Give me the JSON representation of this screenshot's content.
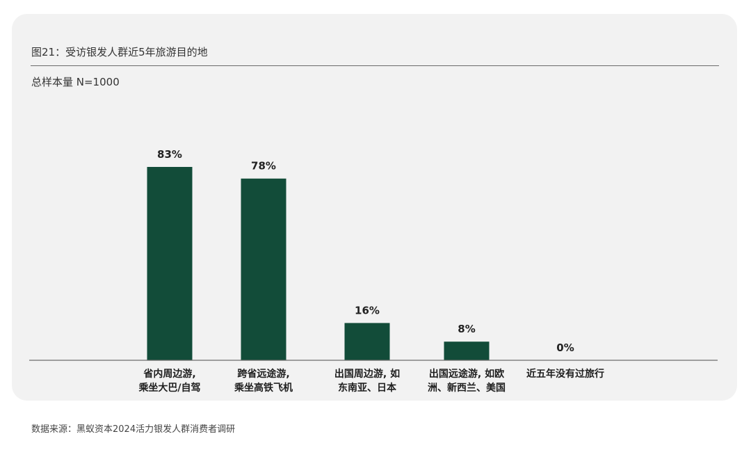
{
  "title": "图21：受访银发人群近5年旅游目的地",
  "subtitle": "总样本量 N=1000",
  "source": "数据来源：黑蚁资本2024活力银发人群消费者调研",
  "colors": {
    "bar": "#124c39",
    "card": "#f2f2f2",
    "axis": "#6b6b6b"
  },
  "chart_data": {
    "type": "bar",
    "categories": [
      [
        "省内周边游,",
        "乘坐大巴/自驾"
      ],
      [
        "跨省远途游,",
        "乘坐高铁飞机"
      ],
      [
        "出国周边游, 如",
        "东南亚、日本"
      ],
      [
        "出国远途游, 如欧",
        "洲、新西兰、美国"
      ],
      [
        "近五年没有过旅行"
      ]
    ],
    "values": [
      83,
      78,
      16,
      8,
      0
    ],
    "value_labels": [
      "83%",
      "78%",
      "16%",
      "8%",
      "0%"
    ],
    "unit": "%",
    "ylim": [
      0,
      100
    ],
    "grid": false,
    "legend": "none"
  }
}
